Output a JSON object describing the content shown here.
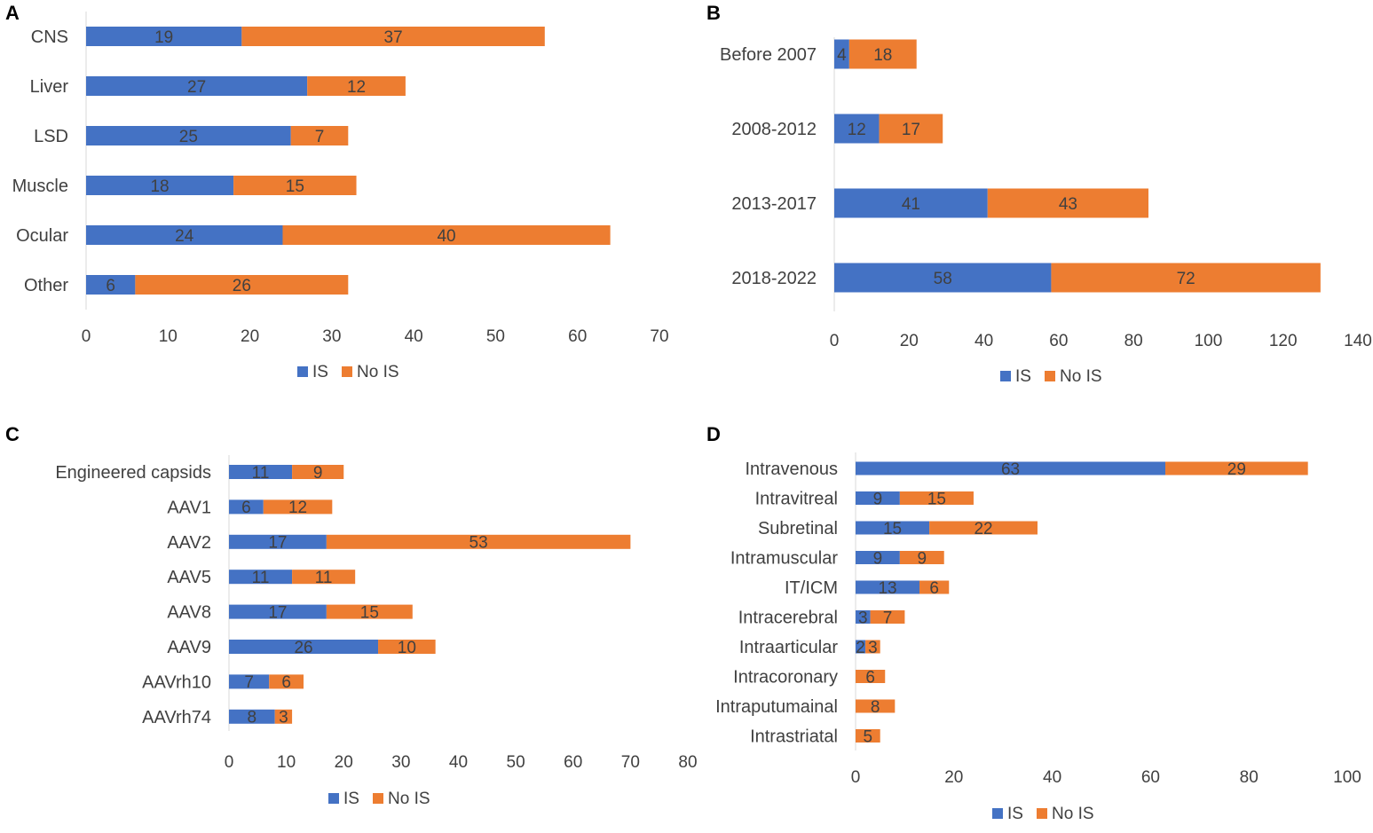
{
  "colors": {
    "is": "#4472C4",
    "no_is": "#ED7D31",
    "axis": "#D9D9D9",
    "text": "#404040"
  },
  "legend": {
    "is_label": "IS",
    "no_is_label": "No IS"
  },
  "chart_data": [
    {
      "panel": "A",
      "type": "bar",
      "orientation": "horizontal",
      "stacked": true,
      "categories": [
        "CNS",
        "Liver",
        "LSD",
        "Muscle",
        "Ocular",
        "Other"
      ],
      "series": [
        {
          "name": "IS",
          "values": [
            19,
            27,
            25,
            18,
            24,
            6
          ]
        },
        {
          "name": "No IS",
          "values": [
            37,
            12,
            7,
            15,
            40,
            26
          ]
        }
      ],
      "xlim": [
        0,
        70
      ],
      "xticks": [
        0,
        10,
        20,
        30,
        40,
        50,
        60,
        70
      ],
      "legend_position": "bottom-center"
    },
    {
      "panel": "B",
      "type": "bar",
      "orientation": "horizontal",
      "stacked": true,
      "categories": [
        "Before 2007",
        "2008-2012",
        "2013-2017",
        "2018-2022"
      ],
      "series": [
        {
          "name": "IS",
          "values": [
            4,
            12,
            41,
            58
          ]
        },
        {
          "name": "No IS",
          "values": [
            18,
            17,
            43,
            72
          ]
        }
      ],
      "xlim": [
        0,
        140
      ],
      "xticks": [
        0,
        20,
        40,
        60,
        80,
        100,
        120,
        140
      ],
      "legend_position": "bottom-center"
    },
    {
      "panel": "C",
      "type": "bar",
      "orientation": "horizontal",
      "stacked": true,
      "categories": [
        "Engineered capsids",
        "AAV1",
        "AAV2",
        "AAV5",
        "AAV8",
        "AAV9",
        "AAVrh10",
        "AAVrh74"
      ],
      "series": [
        {
          "name": "IS",
          "values": [
            11,
            6,
            17,
            11,
            17,
            26,
            7,
            8
          ]
        },
        {
          "name": "No IS",
          "values": [
            9,
            12,
            53,
            11,
            15,
            10,
            6,
            3
          ]
        }
      ],
      "xlim": [
        0,
        80
      ],
      "xticks": [
        0,
        10,
        20,
        30,
        40,
        50,
        60,
        70,
        80
      ],
      "legend_position": "bottom-center"
    },
    {
      "panel": "D",
      "type": "bar",
      "orientation": "horizontal",
      "stacked": true,
      "categories": [
        "Intravenous",
        "Intravitreal",
        "Subretinal",
        "Intramuscular",
        "IT/ICM",
        "Intracerebral",
        "Intraarticular",
        "Intracoronary",
        "Intraputumainal",
        "Intrastriatal"
      ],
      "series": [
        {
          "name": "IS",
          "values": [
            63,
            9,
            15,
            9,
            13,
            3,
            2,
            0,
            0,
            0
          ]
        },
        {
          "name": "No IS",
          "values": [
            29,
            15,
            22,
            9,
            6,
            7,
            3,
            6,
            8,
            5
          ]
        }
      ],
      "xlim": [
        0,
        100
      ],
      "xticks": [
        0,
        20,
        40,
        60,
        80,
        100
      ],
      "legend_position": "bottom-center"
    }
  ]
}
